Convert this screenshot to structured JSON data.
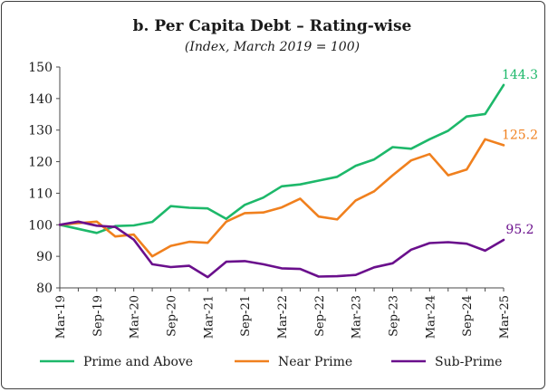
{
  "chart_data": {
    "type": "line",
    "title": "b. Per Capita Debt – Rating-wise",
    "subtitle": "(Index, March 2019 = 100)",
    "xlabel": "",
    "ylabel": "",
    "ylim": [
      80,
      150
    ],
    "y_ticks": [
      80,
      90,
      100,
      110,
      120,
      130,
      140,
      150
    ],
    "x_tick_labels": [
      "Mar-19",
      "Sep-19",
      "Mar-20",
      "Sep-20",
      "Mar-21",
      "Sep-21",
      "Mar-22",
      "Sep-22",
      "Mar-23",
      "Sep-23",
      "Mar-24",
      "Sep-24",
      "Mar-25"
    ],
    "x": [
      "Mar-19",
      "Jun-19",
      "Sep-19",
      "Dec-19",
      "Mar-20",
      "Jun-20",
      "Sep-20",
      "Dec-20",
      "Mar-21",
      "Jun-21",
      "Sep-21",
      "Dec-21",
      "Mar-22",
      "Jun-22",
      "Sep-22",
      "Dec-22",
      "Mar-23",
      "Jun-23",
      "Sep-23",
      "Dec-23",
      "Mar-24",
      "Jun-24",
      "Sep-24",
      "Dec-24",
      "Mar-25"
    ],
    "series": [
      {
        "name": "Prime and Above",
        "color": "#1db86a",
        "values": [
          100,
          98.7,
          97.4,
          99.6,
          99.8,
          100.9,
          105.9,
          105.4,
          105.2,
          101.9,
          106.3,
          108.6,
          112.2,
          112.8,
          114.0,
          115.2,
          118.7,
          120.7,
          124.6,
          124.1,
          127.1,
          129.8,
          134.3,
          135.1,
          144.3
        ],
        "end_label": "144.3"
      },
      {
        "name": "Near Prime",
        "color": "#f0801e",
        "values": [
          100,
          100.5,
          101.0,
          96.3,
          96.9,
          90.0,
          93.3,
          94.6,
          94.3,
          101.0,
          103.7,
          103.9,
          105.5,
          108.3,
          102.6,
          101.7,
          107.7,
          110.6,
          115.7,
          120.4,
          122.4,
          115.7,
          117.5,
          127.1,
          125.2
        ],
        "end_label": "125.2"
      },
      {
        "name": "Sub-Prime",
        "color": "#6a0f8c",
        "values": [
          100,
          101.0,
          99.7,
          99.3,
          95.3,
          87.5,
          86.6,
          87.0,
          83.4,
          88.3,
          88.5,
          87.5,
          86.2,
          86.0,
          83.6,
          83.7,
          84.1,
          86.5,
          87.8,
          92.1,
          94.2,
          94.5,
          94.0,
          91.8,
          95.2
        ],
        "end_label": "95.2"
      }
    ],
    "grid": false,
    "legend_position": "bottom"
  }
}
